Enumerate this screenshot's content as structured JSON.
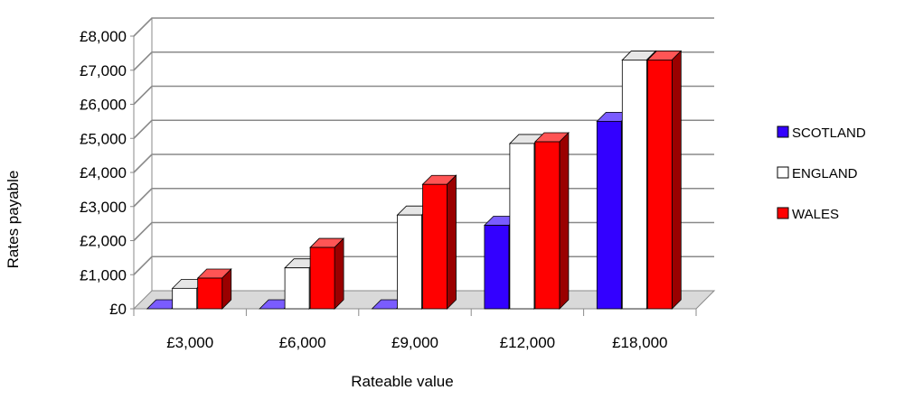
{
  "chart_data": {
    "type": "bar",
    "title": "",
    "xlabel": "Rateable value",
    "ylabel": "Rates payable",
    "categories": [
      "£3,000",
      "£6,000",
      "£9,000",
      "£12,000",
      "£18,000"
    ],
    "ylim": [
      0,
      8000
    ],
    "yticks": [
      0,
      1000,
      2000,
      3000,
      4000,
      5000,
      6000,
      7000,
      8000
    ],
    "ytick_labels": [
      "£0",
      "£1,000",
      "£2,000",
      "£3,000",
      "£4,000",
      "£5,000",
      "£6,000",
      "£7,000",
      "£8,000"
    ],
    "grid": true,
    "legend_position": "right",
    "series": [
      {
        "name": "SCOTLAND",
        "values": [
          0,
          0,
          0,
          2450,
          5500
        ],
        "color": "#3300ff",
        "side": "#160070",
        "top": "#7a5cff"
      },
      {
        "name": "ENGLAND",
        "values": [
          600,
          1200,
          2750,
          4850,
          7300
        ],
        "color": "#ffffff",
        "side": "#cfcfcf",
        "top": "#e6e6e6"
      },
      {
        "name": "WALES",
        "values": [
          900,
          1800,
          3650,
          4900,
          7300
        ],
        "color": "#ff0000",
        "side": "#9a0000",
        "top": "#ff5555"
      }
    ]
  }
}
